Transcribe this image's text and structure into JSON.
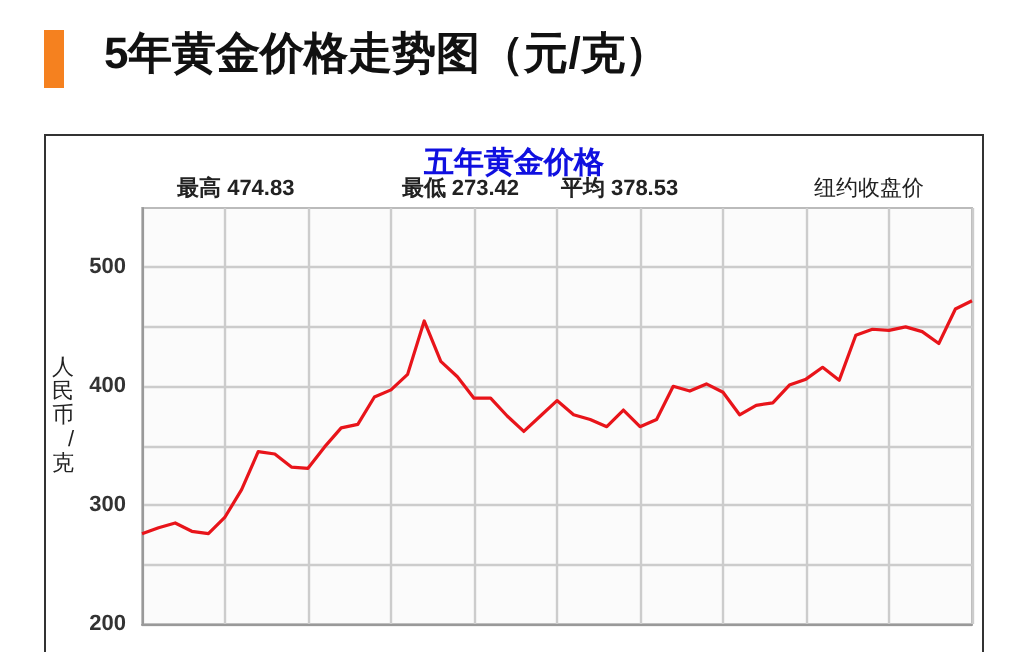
{
  "chart_data": {
    "type": "line",
    "title": "5年黄金价格走势图（元/克）",
    "subtitle": "五年黄金价格",
    "ylabel": "人民币/克",
    "annotations": [
      "最高 474.83",
      "最低 273.42",
      "平均 378.53",
      "纽约收盘价"
    ],
    "categories": [
      null,
      null,
      null,
      null,
      null,
      null,
      null,
      null,
      null,
      null,
      null,
      null,
      null,
      null,
      null,
      null,
      null,
      null,
      null,
      null,
      null,
      null,
      null,
      null,
      null,
      null,
      null,
      null,
      null,
      null,
      null,
      null,
      null,
      null,
      null,
      null,
      null,
      null,
      null,
      null,
      null,
      null,
      null,
      null,
      null,
      null,
      null,
      null,
      null,
      null,
      null
    ],
    "series": [
      {
        "color": "#e8141a",
        "values": [
          276,
          281,
          285,
          278,
          276,
          290,
          313,
          345,
          343,
          332,
          331,
          349,
          365,
          368,
          391,
          397,
          410,
          455,
          421,
          408,
          390,
          390,
          375,
          362,
          375,
          388,
          376,
          372,
          366,
          380,
          366,
          372,
          400,
          396,
          402,
          395,
          376,
          384,
          386,
          401,
          406,
          416,
          405,
          443,
          448,
          447,
          450,
          446,
          436,
          465,
          472
        ]
      }
    ],
    "ylim": [
      200,
      550
    ],
    "yticks": [
      200,
      {
        "value": 250,
        "label": null
      },
      300,
      {
        "value": 350,
        "label": null
      },
      400,
      {
        "value": 450,
        "label": null
      },
      500
    ],
    "tick_labels": "y",
    "grid": true,
    "line_style": "solid"
  }
}
